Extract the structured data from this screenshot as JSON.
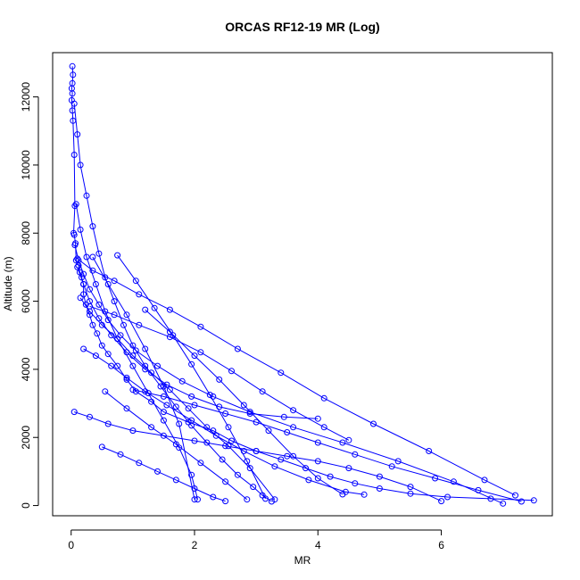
{
  "chart_data": {
    "type": "line",
    "title": "ORCAS RF12-19 MR (Log)",
    "xlabel": "MR",
    "ylabel": "Altitude (m)",
    "xlim": [
      -0.3,
      7.8
    ],
    "ylim": [
      -300,
      13300
    ],
    "x_ticks": [
      "0",
      "2",
      "4",
      "6"
    ],
    "x_tick_values": [
      0,
      2,
      4,
      6
    ],
    "y_ticks": [
      "0",
      "2000",
      "4000",
      "6000",
      "8000",
      "10000",
      "12000"
    ],
    "y_tick_values": [
      0,
      2000,
      4000,
      6000,
      8000,
      10000,
      12000
    ],
    "grid": false,
    "legend": "none",
    "line_color": "#0000ff",
    "marker": "open-circle",
    "series": [
      {
        "x": [
          0.02,
          0.03,
          0.02,
          0.01,
          0.02,
          0.01,
          0.02,
          0.03,
          0.05,
          0.06,
          0.04,
          0.05,
          0.07,
          0.08,
          0.12,
          0.14,
          0.17,
          0.2,
          0.2,
          0.24,
          0.3,
          0.35,
          0.42,
          0.5,
          0.6,
          0.75,
          0.9,
          1.05,
          1.3,
          1.5,
          1.9,
          2.3,
          2.6,
          3.0,
          3.4,
          3.8,
          4.2,
          4.6,
          5.0,
          5.5,
          6.1,
          6.8,
          7.5
        ],
        "y": [
          12900,
          12650,
          12400,
          12250,
          12100,
          11900,
          11600,
          11300,
          10300,
          8800,
          8000,
          7950,
          7700,
          7200,
          7050,
          6850,
          6700,
          6500,
          6200,
          5900,
          5600,
          5300,
          5050,
          4700,
          4450,
          4100,
          3700,
          3350,
          3050,
          2750,
          2450,
          2200,
          1900,
          1600,
          1350,
          1100,
          850,
          650,
          500,
          350,
          250,
          200,
          150
        ]
      },
      {
        "x": [
          0.05,
          0.1,
          0.15,
          0.25,
          0.35,
          0.45,
          0.55,
          0.7,
          0.85,
          1.0,
          1.2,
          1.45,
          1.7,
          1.95,
          2.2,
          2.45,
          2.7,
          2.95,
          3.1,
          3.25
        ],
        "y": [
          11800,
          10900,
          10000,
          9100,
          8200,
          7400,
          6700,
          6000,
          5300,
          4700,
          4100,
          3500,
          2900,
          2350,
          1850,
          1350,
          900,
          550,
          300,
          120
        ]
      },
      {
        "x": [
          0.08,
          0.15,
          0.25,
          0.4,
          0.55,
          0.75,
          1.0,
          1.25,
          1.5,
          1.75,
          1.95,
          2.05
        ],
        "y": [
          8850,
          8100,
          7300,
          6500,
          5700,
          4900,
          4100,
          3300,
          2500,
          1700,
          900,
          180
        ]
      },
      {
        "x": [
          0.06,
          0.12,
          0.2,
          0.3,
          0.45,
          0.6,
          0.8,
          1.05,
          1.4,
          1.8,
          2.3,
          2.9,
          3.6,
          4.4,
          5.3,
          6.2,
          7.0
        ],
        "y": [
          7650,
          7200,
          6800,
          6350,
          5900,
          5450,
          5000,
          4550,
          4100,
          3650,
          3200,
          2750,
          2300,
          1850,
          1300,
          700,
          60
        ]
      },
      {
        "x": [
          0.1,
          0.2,
          0.3,
          0.45,
          0.65,
          0.9,
          1.2,
          1.55,
          1.95,
          2.4,
          2.9,
          3.45,
          4.0
        ],
        "y": [
          7000,
          6500,
          6000,
          5500,
          5000,
          4500,
          4000,
          3550,
          3200,
          2900,
          2700,
          2600,
          2550
        ]
      },
      {
        "x": [
          0.15,
          0.3,
          0.5,
          0.75,
          1.0,
          1.3,
          1.6,
          1.9,
          2.2,
          2.55,
          2.9,
          3.3
        ],
        "y": [
          6100,
          5700,
          5300,
          4900,
          4400,
          3900,
          3400,
          2850,
          2300,
          1750,
          1100,
          180
        ]
      },
      {
        "x": [
          0.1,
          0.35,
          0.7,
          1.1,
          1.6,
          2.1,
          2.7,
          3.4,
          4.1,
          4.9,
          5.8,
          6.7,
          7.2
        ],
        "y": [
          7250,
          6900,
          6600,
          6200,
          5750,
          5250,
          4600,
          3900,
          3150,
          2400,
          1600,
          750,
          300
        ]
      },
      {
        "x": [
          0.2,
          0.4,
          0.65,
          0.9,
          1.2,
          1.55,
          1.95,
          2.35,
          2.8,
          3.3,
          3.85,
          4.45,
          4.75
        ],
        "y": [
          4600,
          4400,
          4100,
          3750,
          3350,
          2950,
          2500,
          2050,
          1600,
          1150,
          750,
          400,
          320
        ]
      },
      {
        "x": [
          0.05,
          0.3,
          0.6,
          1.0,
          1.5,
          2.0,
          2.5,
          3.0,
          3.5,
          4.0,
          4.5,
          5.0,
          5.5,
          6.0
        ],
        "y": [
          2750,
          2600,
          2400,
          2200,
          2050,
          1900,
          1750,
          1600,
          1450,
          1300,
          1100,
          850,
          550,
          130
        ]
      },
      {
        "x": [
          0.5,
          0.8,
          1.1,
          1.4,
          1.7,
          2.0,
          2.3,
          2.5
        ],
        "y": [
          1720,
          1500,
          1250,
          1000,
          750,
          500,
          250,
          130
        ]
      },
      {
        "x": [
          0.55,
          0.9,
          1.3,
          1.7,
          2.1,
          2.5,
          2.85
        ],
        "y": [
          3350,
          2850,
          2300,
          1800,
          1250,
          700,
          180
        ]
      },
      {
        "x": [
          0.3,
          0.7,
          1.1,
          1.6,
          2.1,
          2.6,
          3.1,
          3.6,
          4.1,
          4.5
        ],
        "y": [
          5850,
          5600,
          5300,
          4950,
          4500,
          3950,
          3350,
          2800,
          2300,
          1920
        ]
      },
      {
        "x": [
          0.35,
          0.6,
          0.9,
          1.2,
          1.5,
          1.75,
          2.0
        ],
        "y": [
          7300,
          6500,
          5600,
          4600,
          3500,
          2400,
          180
        ]
      },
      {
        "x": [
          1.0,
          1.5,
          2.0,
          2.5,
          3.0,
          3.5,
          4.0,
          4.6,
          5.2,
          5.9,
          6.6,
          7.3
        ],
        "y": [
          3400,
          3200,
          2950,
          2700,
          2450,
          2150,
          1850,
          1500,
          1150,
          800,
          450,
          120
        ]
      },
      {
        "x": [
          1.2,
          1.6,
          2.0,
          2.4,
          2.8,
          3.2,
          3.6,
          4.0,
          4.4
        ],
        "y": [
          5750,
          5100,
          4400,
          3700,
          2950,
          2200,
          1450,
          800,
          330
        ]
      },
      {
        "x": [
          0.75,
          1.05,
          1.35,
          1.65,
          1.95,
          2.25,
          2.55,
          2.85,
          3.15
        ],
        "y": [
          7350,
          6600,
          5800,
          5000,
          4150,
          3250,
          2300,
          1300,
          200
        ]
      }
    ]
  }
}
